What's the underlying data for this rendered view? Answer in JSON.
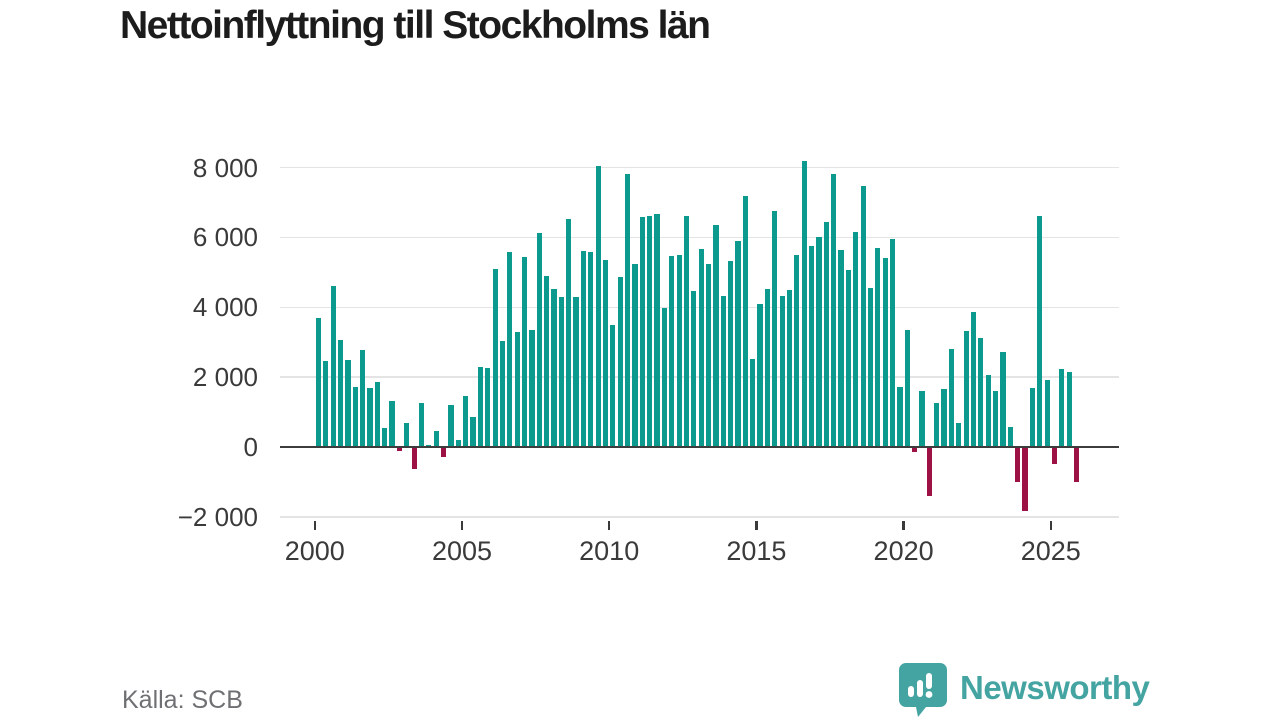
{
  "title": "Nettoinflyttning till Stockholms län",
  "source": "Källa: SCB",
  "logo": {
    "text": "Newsworthy",
    "color": "#44a4a1"
  },
  "colors": {
    "positive": "#0b9a8d",
    "negative": "#9d1245",
    "grid": "#e4e4e4",
    "axis": "#3d3d3d",
    "text": "#3a3a3a"
  },
  "chart_data": {
    "type": "bar",
    "title": "Nettoinflyttning till Stockholms län",
    "xlabel": "",
    "ylabel": "",
    "frequency": "quarterly",
    "ylim": [
      -2000,
      8000
    ],
    "yticks": [
      {
        "value": -2000,
        "label": "−2 000"
      },
      {
        "value": 0,
        "label": "0"
      },
      {
        "value": 2000,
        "label": "2 000"
      },
      {
        "value": 4000,
        "label": "4 000"
      },
      {
        "value": 6000,
        "label": "6 000"
      },
      {
        "value": 8000,
        "label": "8 000"
      }
    ],
    "xticks": [
      2000,
      2005,
      2010,
      2015,
      2020,
      2025
    ],
    "grid": "horizontal",
    "legend": "none",
    "series": [
      {
        "year": 2000,
        "q": [
          3700,
          2450,
          4600,
          3050
        ]
      },
      {
        "year": 2001,
        "q": [
          2480,
          1720,
          2770,
          1700
        ]
      },
      {
        "year": 2002,
        "q": [
          1870,
          550,
          1310,
          -120
        ]
      },
      {
        "year": 2003,
        "q": [
          700,
          -630,
          1250,
          60
        ]
      },
      {
        "year": 2004,
        "q": [
          460,
          -300,
          1200,
          200
        ]
      },
      {
        "year": 2005,
        "q": [
          1470,
          850,
          2300,
          2250
        ]
      },
      {
        "year": 2006,
        "q": [
          5100,
          3030,
          5590,
          3280
        ]
      },
      {
        "year": 2007,
        "q": [
          5430,
          3350,
          6130,
          4900
        ]
      },
      {
        "year": 2008,
        "q": [
          4530,
          4290,
          6520,
          4290
        ]
      },
      {
        "year": 2009,
        "q": [
          5620,
          5580,
          8050,
          5360
        ]
      },
      {
        "year": 2010,
        "q": [
          3500,
          4870,
          7820,
          5240
        ]
      },
      {
        "year": 2011,
        "q": [
          6600,
          6620,
          6680,
          3970
        ]
      },
      {
        "year": 2012,
        "q": [
          5470,
          5490,
          6620,
          4460
        ]
      },
      {
        "year": 2013,
        "q": [
          5660,
          5230,
          6360,
          4310
        ]
      },
      {
        "year": 2014,
        "q": [
          5320,
          5900,
          7200,
          2530
        ]
      },
      {
        "year": 2015,
        "q": [
          4100,
          4520,
          6750,
          4310
        ]
      },
      {
        "year": 2016,
        "q": [
          4500,
          5510,
          8200,
          5770
        ]
      },
      {
        "year": 2017,
        "q": [
          6010,
          6440,
          7810,
          5640
        ]
      },
      {
        "year": 2018,
        "q": [
          5070,
          6170,
          7470,
          4540
        ]
      },
      {
        "year": 2019,
        "q": [
          5710,
          5400,
          5960,
          1720
        ]
      },
      {
        "year": 2020,
        "q": [
          3340,
          -140,
          1600,
          -1400
        ]
      },
      {
        "year": 2021,
        "q": [
          1270,
          1650,
          2820,
          700
        ]
      },
      {
        "year": 2022,
        "q": [
          3310,
          3860,
          3110,
          2070
        ]
      },
      {
        "year": 2023,
        "q": [
          1610,
          2730,
          570,
          -1010
        ]
      },
      {
        "year": 2024,
        "q": [
          -1820,
          1690,
          6620,
          1920
        ]
      },
      {
        "year": 2025,
        "q": [
          -490,
          2230,
          2140,
          -1010
        ]
      }
    ]
  }
}
